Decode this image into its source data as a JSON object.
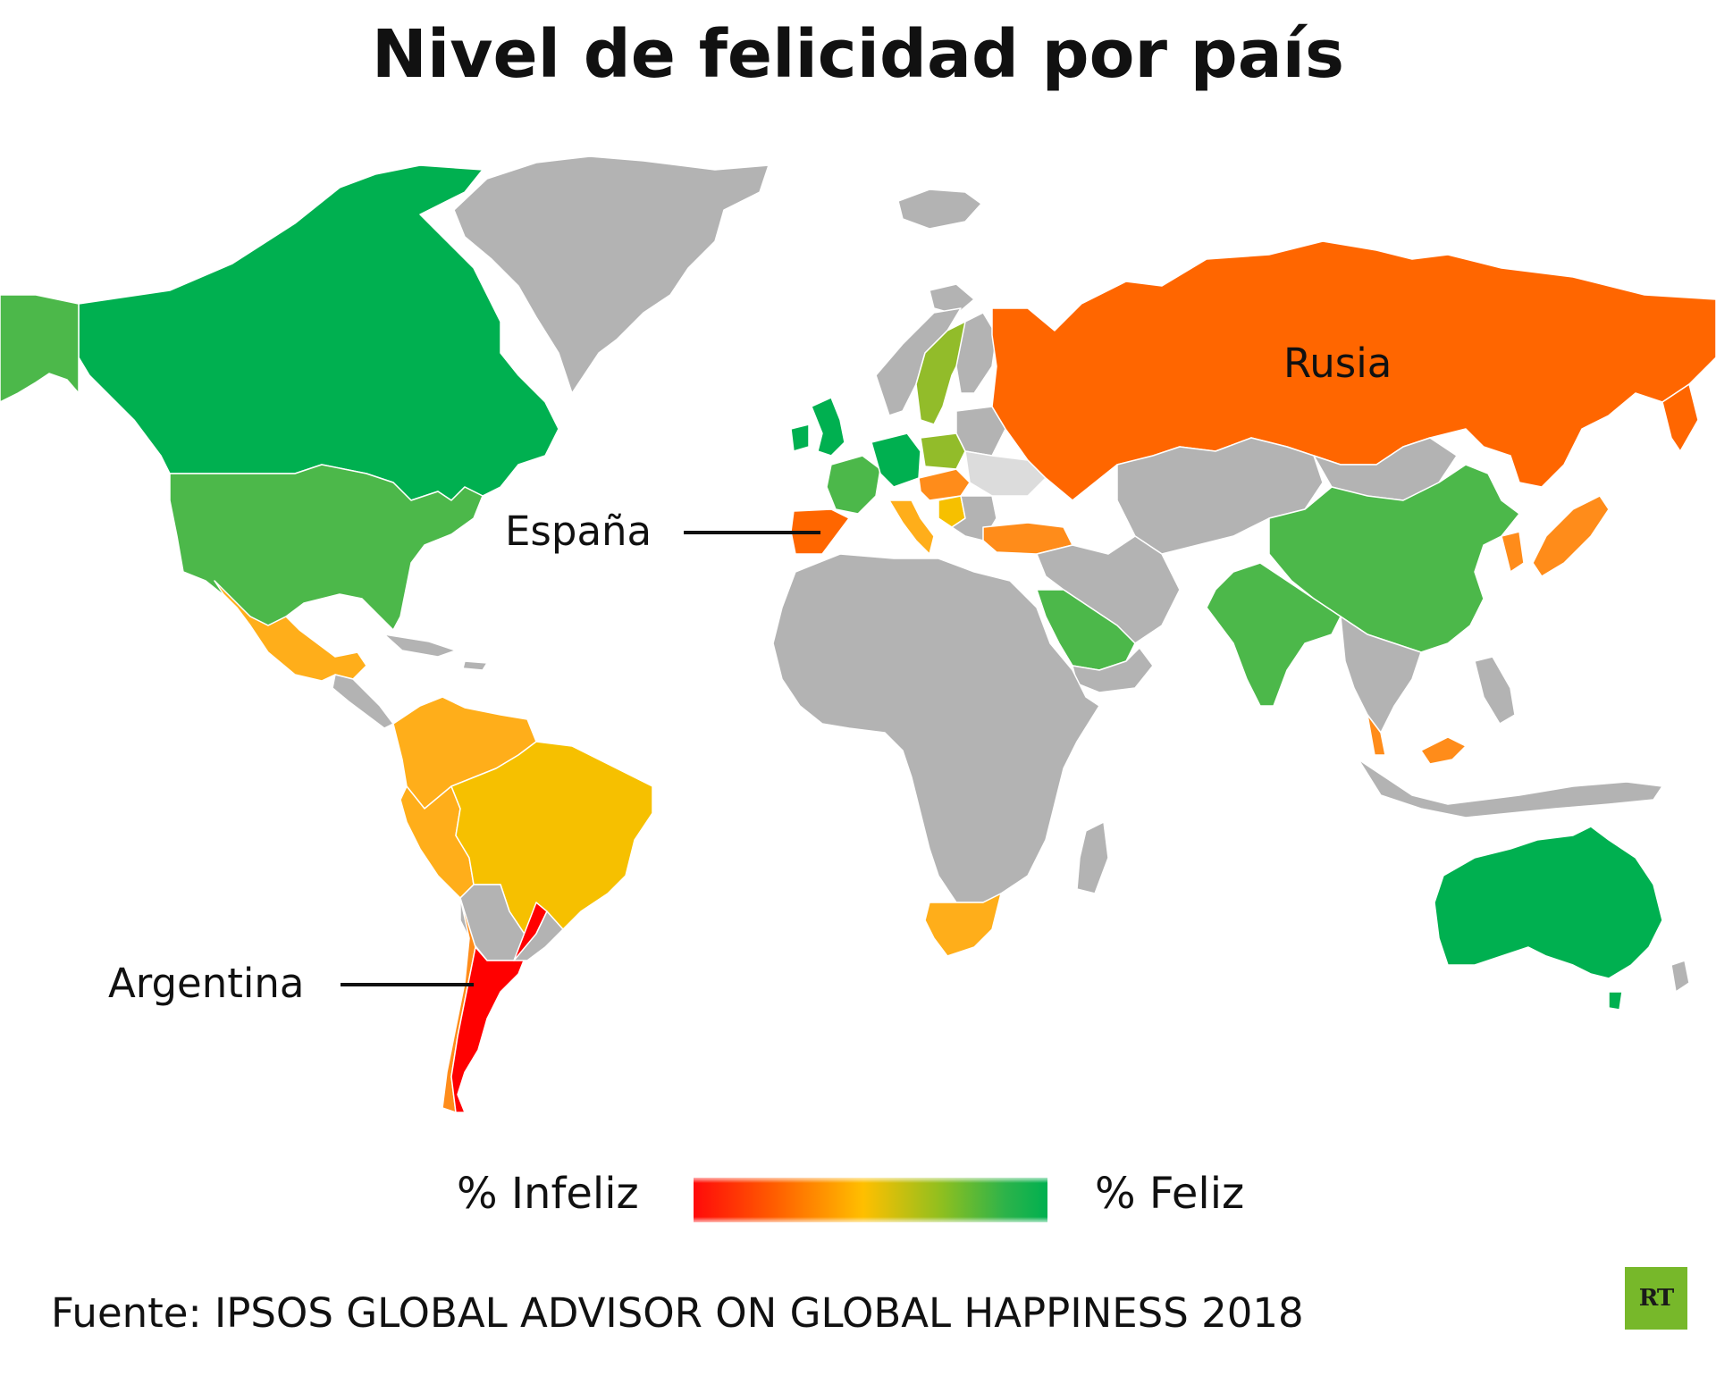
{
  "title": "Nivel de felicidad por país",
  "labels": {
    "rusia": "Rusia",
    "espana": "España",
    "argentina": "Argentina"
  },
  "legend": {
    "left": "% Infeliz",
    "right": "% Feliz",
    "scale_colors": [
      "#ff0a0a",
      "#ff5a00",
      "#ffbf00",
      "#8fbf1f",
      "#00b050"
    ]
  },
  "source": "Fuente: IPSOS GLOBAL ADVISOR ON GLOBAL HAPPINESS 2018",
  "logo_text": "RT",
  "colors": {
    "no_data": "#b3b3b3",
    "green_dark": "#00b050",
    "green_mid": "#4cb84a",
    "yellow_green": "#92bc2a",
    "yellow": "#f6c000",
    "light_orange": "#ffae1a",
    "orange": "#ff8c1a",
    "orange_dark": "#ff6600",
    "red": "#ff0000",
    "logo_green": "#77b82a"
  }
}
